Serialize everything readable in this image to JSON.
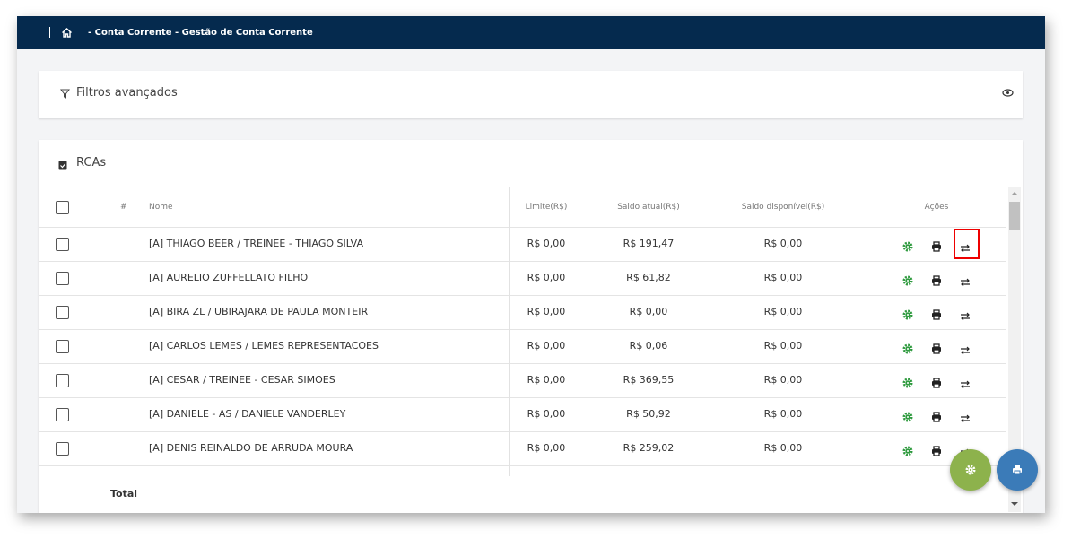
{
  "header": {
    "breadcrumb": "- Conta Corrente - Gestão de Conta Corrente"
  },
  "filters": {
    "title": "Filtros avançados"
  },
  "table": {
    "title": "RCAs",
    "columns": [
      "#",
      "Nome",
      "Limite(R$)",
      "Saldo atual(R$)",
      "Saldo disponível(R$)",
      "Ações"
    ],
    "rows": [
      [
        "[A] THIAGO BEER / TREINEE - THIAGO SILVA",
        "R$ 0,00",
        "R$ 191,47",
        "R$ 0,00"
      ],
      [
        "[A] AURELIO ZUFFELLATO FILHO",
        "R$ 0,00",
        "R$ 61,82",
        "R$ 0,00"
      ],
      [
        "[A] BIRA ZL / UBIRAJARA DE PAULA MONTEIR",
        "R$ 0,00",
        "R$ 0,00",
        "R$ 0,00"
      ],
      [
        "[A] CARLOS LEMES / LEMES REPRESENTACOES",
        "R$ 0,00",
        "R$ 0,06",
        "R$ 0,00"
      ],
      [
        "[A] CESAR / TREINEE - CESAR SIMOES",
        "R$ 0,00",
        "R$ 369,55",
        "R$ 0,00"
      ],
      [
        "[A] DANIELE - AS / DANIELE VANDERLEY",
        "R$ 0,00",
        "R$ 50,92",
        "R$ 0,00"
      ],
      [
        "[A] DENIS REINALDO DE ARRUDA MOURA",
        "R$ 0,00",
        "R$ 259,02",
        "R$ 0,00"
      ]
    ],
    "total": "Total"
  }
}
